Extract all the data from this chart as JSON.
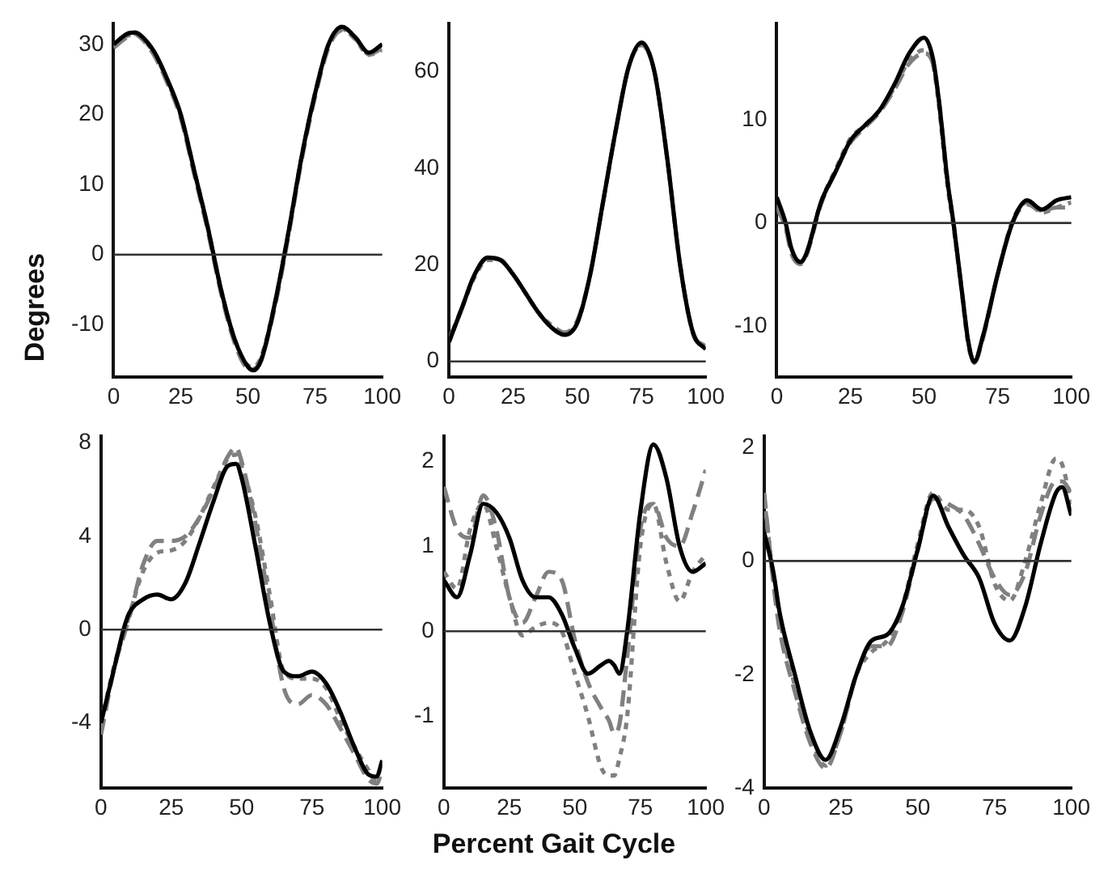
{
  "chart_data": [
    {
      "type": "line",
      "ylabel": "Degrees",
      "marker": "none",
      "grid": false,
      "xlim": [
        0,
        100
      ],
      "xticks": [
        0,
        25,
        50,
        75,
        100
      ],
      "ylim": [
        -17.5,
        33
      ],
      "yticks": [
        -10,
        0,
        10,
        20,
        30
      ],
      "ref_lines": [
        {
          "axis": "y",
          "value": 0,
          "color": "#333333"
        }
      ],
      "x": [
        0,
        5,
        8,
        10,
        15,
        20,
        25,
        30,
        35,
        40,
        45,
        50,
        52,
        55,
        60,
        65,
        70,
        75,
        80,
        85,
        90,
        95,
        100
      ],
      "series": [
        {
          "color": "#000000",
          "line_style": "solid",
          "values": [
            30,
            31.5,
            31.7,
            31.3,
            29,
            25,
            20,
            12,
            4,
            -5,
            -12,
            -16,
            -16.5,
            -15,
            -7,
            3,
            14,
            23,
            30,
            32.5,
            31,
            28.8,
            30
          ]
        },
        {
          "color": "#808080",
          "line_style": "dashed",
          "values": [
            29.5,
            31,
            31.5,
            31,
            28.5,
            24.5,
            19.5,
            11.5,
            3.5,
            -5.5,
            -12.5,
            -16.2,
            -16.3,
            -14.8,
            -7.5,
            2.5,
            13.5,
            22.5,
            29.5,
            32,
            30.8,
            28.6,
            29.4
          ]
        },
        {
          "color": "#808080",
          "line_style": "dotted",
          "values": [
            30,
            31.2,
            31.4,
            31,
            28.8,
            24.8,
            19.8,
            12,
            4,
            -5,
            -12,
            -15.8,
            -16,
            -14.5,
            -7,
            3,
            14,
            23,
            30,
            32.2,
            30.7,
            28.5,
            29.2
          ]
        }
      ]
    },
    {
      "type": "line",
      "marker": "none",
      "grid": false,
      "xlim": [
        0,
        100
      ],
      "xticks": [
        0,
        25,
        50,
        75,
        100
      ],
      "ylim": [
        -3.3,
        70
      ],
      "yticks": [
        0,
        20,
        40,
        60
      ],
      "ref_lines": [
        {
          "axis": "y",
          "value": 0,
          "color": "#333333"
        }
      ],
      "x": [
        0,
        5,
        10,
        15,
        20,
        25,
        30,
        35,
        40,
        45,
        50,
        55,
        60,
        65,
        70,
        75,
        80,
        85,
        90,
        95,
        100
      ],
      "series": [
        {
          "color": "#000000",
          "line_style": "solid",
          "values": [
            4,
            11,
            18,
            21.5,
            21,
            18,
            14,
            10,
            7,
            5.5,
            8,
            18,
            33,
            48,
            61,
            66,
            60,
            42,
            20,
            6,
            2.5
          ]
        },
        {
          "color": "#808080",
          "line_style": "dashed",
          "values": [
            4.5,
            11,
            18,
            21.3,
            21,
            18,
            14,
            10,
            7,
            6,
            8.5,
            18,
            33,
            48,
            61,
            65.5,
            60,
            42,
            20,
            6,
            3
          ]
        },
        {
          "color": "#808080",
          "line_style": "dotted",
          "values": [
            4,
            11,
            17.5,
            21,
            21,
            18,
            14,
            10,
            7.5,
            6,
            8,
            18,
            33,
            48,
            61,
            65.5,
            60,
            42,
            20,
            6,
            3
          ]
        }
      ]
    },
    {
      "type": "line",
      "marker": "none",
      "grid": false,
      "xlim": [
        0,
        100
      ],
      "xticks": [
        0,
        25,
        50,
        75,
        100
      ],
      "ylim": [
        -15,
        19.4
      ],
      "yticks": [
        -10,
        0,
        10
      ],
      "ref_lines": [
        {
          "axis": "y",
          "value": 0,
          "color": "#333333"
        }
      ],
      "x": [
        0,
        3,
        5,
        8,
        10,
        15,
        20,
        25,
        30,
        35,
        40,
        45,
        50,
        53,
        55,
        58,
        60,
        63,
        65,
        67,
        70,
        75,
        80,
        85,
        90,
        95,
        100
      ],
      "series": [
        {
          "color": "#000000",
          "line_style": "solid",
          "values": [
            2.5,
            0,
            -2.5,
            -3.8,
            -3,
            2,
            5,
            8,
            9.5,
            11,
            13.5,
            16.5,
            18,
            16,
            12,
            4,
            0,
            -7,
            -11.5,
            -13.5,
            -11,
            -5,
            0,
            2.2,
            1.3,
            2.2,
            2.5
          ]
        },
        {
          "color": "#808080",
          "line_style": "dashed",
          "values": [
            1.5,
            -0.5,
            -3,
            -4,
            -3.2,
            1.8,
            5,
            7.8,
            9.3,
            10.8,
            13,
            15.5,
            16.5,
            15.5,
            12,
            4,
            0,
            -7,
            -11.5,
            -13.6,
            -11.2,
            -5,
            0,
            1.8,
            1.2,
            1.5,
            1.5
          ]
        },
        {
          "color": "#808080",
          "line_style": "dotted",
          "values": [
            1.8,
            -0.3,
            -2.8,
            -3.9,
            -3,
            2,
            5.2,
            8.2,
            9.5,
            11,
            13.2,
            15.8,
            16.8,
            15.5,
            11.5,
            3.5,
            -0.3,
            -7.2,
            -11.8,
            -13.5,
            -11,
            -5,
            0.2,
            2,
            1,
            1.5,
            2
          ]
        }
      ]
    },
    {
      "type": "line",
      "marker": "none",
      "grid": false,
      "xlim": [
        0,
        100
      ],
      "xticks": [
        0,
        25,
        50,
        75,
        100
      ],
      "ylim": [
        -6.8,
        8.3
      ],
      "yticks": [
        -4,
        0,
        4,
        8
      ],
      "ref_lines": [
        {
          "axis": "y",
          "value": 0,
          "color": "#333333"
        }
      ],
      "x": [
        0,
        5,
        8,
        10,
        15,
        20,
        25,
        30,
        35,
        40,
        45,
        48,
        50,
        55,
        60,
        65,
        70,
        75,
        80,
        85,
        90,
        95,
        98,
        100
      ],
      "series": [
        {
          "color": "#000000",
          "line_style": "solid",
          "values": [
            -4,
            -1.5,
            0,
            0.7,
            1.3,
            1.5,
            1.3,
            2,
            3.7,
            5.5,
            7,
            7.1,
            6.5,
            3.5,
            0.3,
            -1.8,
            -2,
            -1.8,
            -2.3,
            -3.5,
            -5,
            -6.2,
            -6.3,
            -5.6
          ]
        },
        {
          "color": "#808080",
          "line_style": "dashed",
          "values": [
            -4.5,
            -1.5,
            -0.3,
            0.5,
            2.8,
            3.8,
            3.8,
            4,
            4.8,
            6,
            7.4,
            7.8,
            7.2,
            4.5,
            1,
            -2.5,
            -3.2,
            -2.8,
            -3.2,
            -4.2,
            -5.3,
            -6.4,
            -6.6,
            -6
          ]
        },
        {
          "color": "#808080",
          "line_style": "dotted",
          "values": [
            -4,
            -1.4,
            -0.2,
            0.6,
            2.5,
            3.3,
            3.4,
            3.8,
            4.8,
            6.1,
            7.3,
            7.5,
            7,
            4.8,
            1.5,
            -1.8,
            -2.1,
            -2.1,
            -2.5,
            -3.8,
            -5,
            -6,
            -6.5,
            -6.4
          ]
        }
      ]
    },
    {
      "type": "line",
      "xlabel": "Percent Gait Cycle",
      "marker": "none",
      "grid": false,
      "xlim": [
        0,
        100
      ],
      "xticks": [
        0,
        25,
        50,
        75,
        100
      ],
      "ylim": [
        -1.85,
        2.3
      ],
      "yticks": [
        -1,
        0,
        1,
        2
      ],
      "ref_lines": [
        {
          "axis": "y",
          "value": 0,
          "color": "#333333"
        }
      ],
      "x": [
        0,
        5,
        10,
        15,
        20,
        25,
        30,
        35,
        40,
        45,
        50,
        55,
        60,
        63,
        65,
        67,
        70,
        75,
        80,
        85,
        90,
        95,
        100
      ],
      "series": [
        {
          "color": "#000000",
          "line_style": "solid",
          "values": [
            0.6,
            0.4,
            0.9,
            1.5,
            1.4,
            1.1,
            0.6,
            0.4,
            0.4,
            0.2,
            -0.2,
            -0.5,
            -0.4,
            -0.35,
            -0.4,
            -0.5,
            0,
            1.4,
            2.2,
            1.8,
            1,
            0.7,
            0.8
          ]
        },
        {
          "color": "#808080",
          "line_style": "dashed",
          "values": [
            1.7,
            1.2,
            1.1,
            1.6,
            1.2,
            0.4,
            0.1,
            0.4,
            0.7,
            0.6,
            -0.1,
            -0.6,
            -0.9,
            -1.05,
            -1.2,
            -1.1,
            -0.3,
            1.2,
            1.5,
            1.1,
            1,
            1.4,
            1.9
          ]
        },
        {
          "color": "#808080",
          "line_style": "dotted",
          "values": [
            0.7,
            0.5,
            1.2,
            1.5,
            1,
            0.4,
            -0.05,
            0.05,
            0.1,
            0,
            -0.5,
            -1,
            -1.6,
            -1.7,
            -1.7,
            -1.5,
            -1,
            1,
            1.5,
            0.8,
            0.35,
            0.7,
            0.9
          ]
        }
      ]
    },
    {
      "type": "line",
      "marker": "none",
      "grid": false,
      "xlim": [
        0,
        100
      ],
      "xticks": [
        0,
        25,
        50,
        75,
        100
      ],
      "ylim": [
        -4,
        2.2
      ],
      "yticks": [
        -4,
        -2,
        0,
        2
      ],
      "ref_lines": [
        {
          "axis": "y",
          "value": 0,
          "color": "#333333"
        }
      ],
      "x": [
        0,
        3,
        5,
        10,
        15,
        20,
        25,
        30,
        35,
        40,
        45,
        50,
        55,
        60,
        65,
        70,
        75,
        80,
        85,
        90,
        95,
        97,
        100
      ],
      "series": [
        {
          "color": "#000000",
          "line_style": "solid",
          "values": [
            0.5,
            -0.2,
            -0.9,
            -2,
            -3,
            -3.5,
            -2.9,
            -2,
            -1.4,
            -1.3,
            -0.8,
            0.2,
            1.15,
            0.6,
            0.1,
            -0.3,
            -1.1,
            -1.4,
            -0.8,
            0.3,
            1.2,
            1.3,
            0.8
          ]
        },
        {
          "color": "#808080",
          "line_style": "dashed",
          "values": [
            1.2,
            -0.4,
            -1.2,
            -2.3,
            -3.2,
            -3.65,
            -3,
            -2,
            -1.5,
            -1.5,
            -0.9,
            0.2,
            1.1,
            1,
            0.8,
            0.3,
            -0.3,
            -0.6,
            -0.2,
            0.8,
            1.4,
            1.4,
            1.2
          ]
        },
        {
          "color": "#808080",
          "line_style": "dotted",
          "values": [
            1.1,
            -0.3,
            -1,
            -2.2,
            -3.1,
            -3.6,
            -3,
            -2,
            -1.6,
            -1.4,
            -0.8,
            0.3,
            1.2,
            0.9,
            0.9,
            0.6,
            -0.4,
            -0.7,
            0,
            1,
            1.8,
            1.7,
            1
          ]
        }
      ]
    }
  ]
}
